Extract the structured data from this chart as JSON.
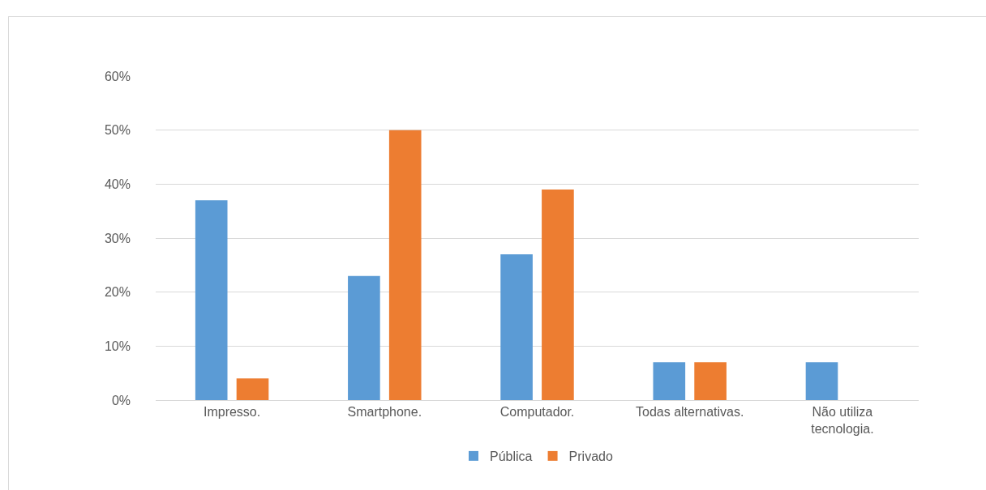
{
  "chart_data": {
    "type": "bar",
    "categories": [
      "Impresso.",
      "Smartphone.",
      "Computador.",
      "Todas alternativas.",
      "Não utiliza\ntecnologia."
    ],
    "series": [
      {
        "name": "Pública",
        "color": "#5b9bd5",
        "values": [
          37,
          23,
          27,
          7,
          7
        ]
      },
      {
        "name": "Privado",
        "color": "#ed7d31",
        "values": [
          4,
          50,
          39,
          7,
          0
        ]
      }
    ],
    "ylim": [
      0,
      60
    ],
    "yticks": [
      {
        "value": 0,
        "label": "0%"
      },
      {
        "value": 10,
        "label": "10%"
      },
      {
        "value": 20,
        "label": "20%"
      },
      {
        "value": 30,
        "label": "30%"
      },
      {
        "value": 40,
        "label": "40%"
      },
      {
        "value": 50,
        "label": "50%"
      },
      {
        "value": 60,
        "label": "60%"
      }
    ],
    "grid": "y",
    "legend": "bottom"
  }
}
